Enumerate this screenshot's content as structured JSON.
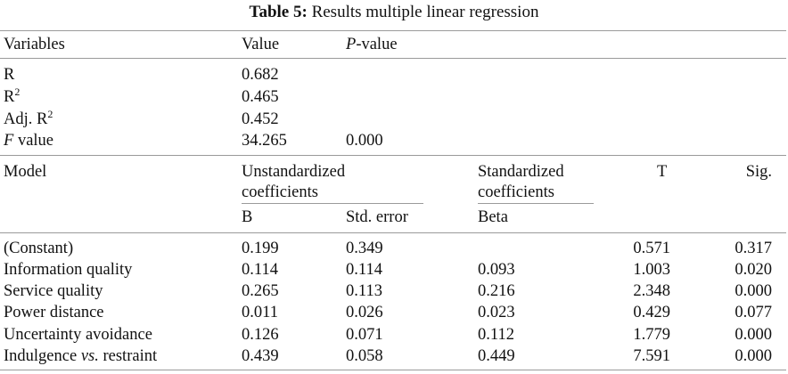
{
  "caption": {
    "label": "Table 5:",
    "title": "Results multiple linear regression"
  },
  "summary": {
    "headers": {
      "variables": "Variables",
      "value": "Value",
      "p_italic": "P",
      "p_rest": "-value"
    },
    "rows": [
      {
        "name": "R",
        "sup": "",
        "value": "0.682",
        "p": ""
      },
      {
        "name": "R",
        "sup": "2",
        "value": "0.465",
        "p": ""
      },
      {
        "name": "Adj. R",
        "sup": "2",
        "value": "0.452",
        "p": ""
      },
      {
        "name_italic": "F",
        "name": " value",
        "sup": "",
        "value": "34.265",
        "p": "0.000"
      }
    ]
  },
  "model": {
    "headers": {
      "model": "Model",
      "unstd_line1": "Unstandardized",
      "unstd_line2": "coefficients",
      "std_line1": "Standardized",
      "std_line2": "coefficients",
      "t": "T",
      "sig": "Sig.",
      "b": "B",
      "std_error": "Std. error",
      "beta": "Beta"
    },
    "rows": [
      {
        "name": "(Constant)",
        "b": "0.199",
        "se": "0.349",
        "beta": "",
        "t": "0.571",
        "sig": "0.317"
      },
      {
        "name": "Information quality",
        "b": "0.114",
        "se": "0.114",
        "beta": "0.093",
        "t": "1.003",
        "sig": "0.020"
      },
      {
        "name": "Service quality",
        "b": "0.265",
        "se": "0.113",
        "beta": "0.216",
        "t": "2.348",
        "sig": "0.000"
      },
      {
        "name": "Power distance",
        "b": "0.011",
        "se": "0.026",
        "beta": "0.023",
        "t": "0.429",
        "sig": "0.077"
      },
      {
        "name": "Uncertainty avoidance",
        "b": "0.126",
        "se": "0.071",
        "beta": "0.112",
        "t": "1.779",
        "sig": "0.000"
      },
      {
        "name_a": "Indulgence ",
        "name_italic": "vs.",
        "name_b": " restraint",
        "b": "0.439",
        "se": "0.058",
        "beta": "0.449",
        "t": "7.591",
        "sig": "0.000"
      }
    ]
  }
}
